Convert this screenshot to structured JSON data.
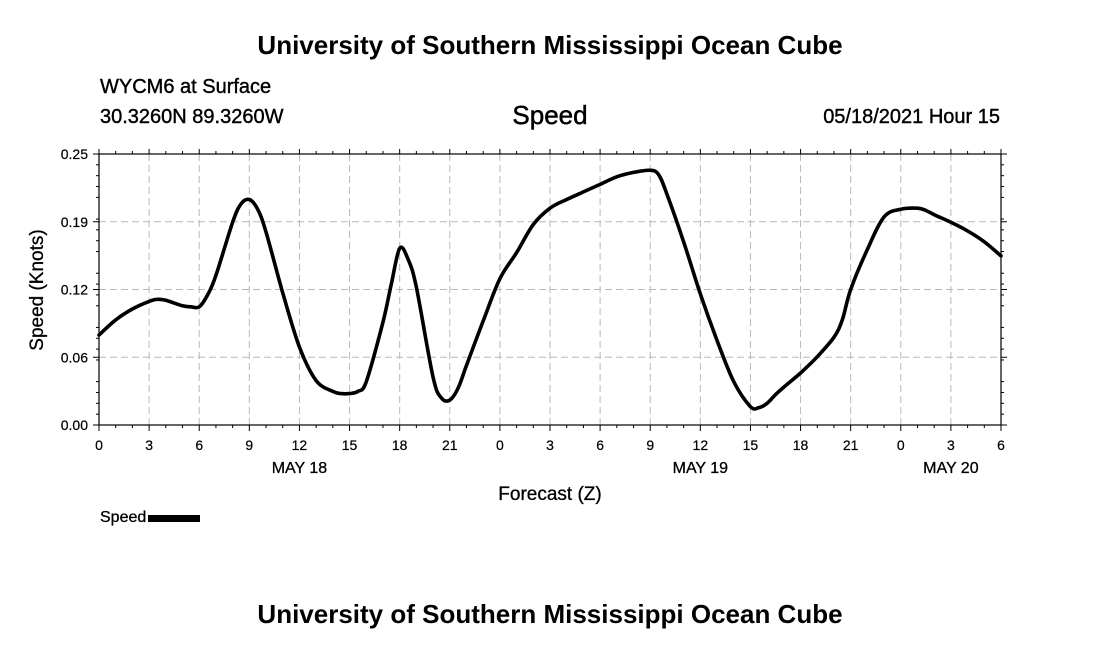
{
  "header": {
    "title": "University of Southern Mississippi Ocean Cube",
    "station": "WYCM6 at Surface",
    "coordinates": "30.3260N  89.3260W",
    "parameter": "Speed",
    "datetime": "05/18/2021 Hour 15"
  },
  "footer": {
    "title": "University of Southern Mississippi Ocean Cube"
  },
  "legend": {
    "label": "Speed"
  },
  "chart_data": {
    "type": "line",
    "title": "Speed",
    "xlabel": "Forecast (Z)",
    "ylabel": "Speed (Knots)",
    "xlim": [
      0,
      54
    ],
    "ylim": [
      0,
      0.25
    ],
    "yticks": [
      "0.00",
      "0.06",
      "0.12",
      "0.19",
      "0.25"
    ],
    "ytick_values": [
      0,
      0.0625,
      0.125,
      0.1875,
      0.25
    ],
    "xticks": [
      "0",
      "3",
      "6",
      "9",
      "12",
      "15",
      "18",
      "21",
      "0",
      "3",
      "6",
      "9",
      "12",
      "15",
      "18",
      "21",
      "0",
      "3",
      "6"
    ],
    "date_labels": [
      {
        "label": "MAY 18",
        "at_hour": 12
      },
      {
        "label": "MAY 19",
        "at_hour": 36
      },
      {
        "label": "MAY 20",
        "at_hour": 51
      }
    ],
    "grid": true,
    "legend_position": "bottom-left",
    "series": [
      {
        "name": "Speed",
        "color": "#000000",
        "x": [
          0,
          1,
          2,
          3,
          3.5,
          4,
          5,
          5.5,
          6,
          6.5,
          7,
          8,
          8.5,
          9,
          9.5,
          10,
          11,
          12,
          13,
          14,
          14.5,
          15,
          15.5,
          16,
          17,
          17.5,
          18,
          18.5,
          19,
          20,
          20.5,
          21,
          21.5,
          22,
          23,
          24,
          25,
          26,
          27,
          28,
          29,
          30,
          31,
          32,
          33,
          33.5,
          34,
          35,
          36,
          37,
          38,
          39,
          39.5,
          40,
          40.5,
          41,
          42,
          43,
          44,
          44.5,
          45,
          46,
          47,
          48,
          49,
          49.5,
          50,
          51,
          52,
          53,
          54
        ],
        "y": [
          0.083,
          0.097,
          0.107,
          0.114,
          0.116,
          0.115,
          0.11,
          0.109,
          0.109,
          0.12,
          0.138,
          0.187,
          0.204,
          0.208,
          0.199,
          0.178,
          0.122,
          0.072,
          0.041,
          0.031,
          0.029,
          0.029,
          0.031,
          0.04,
          0.095,
          0.13,
          0.163,
          0.153,
          0.127,
          0.044,
          0.025,
          0.023,
          0.034,
          0.055,
          0.096,
          0.135,
          0.159,
          0.185,
          0.2,
          0.208,
          0.215,
          0.222,
          0.229,
          0.233,
          0.235,
          0.231,
          0.213,
          0.169,
          0.121,
          0.078,
          0.04,
          0.017,
          0.016,
          0.02,
          0.028,
          0.035,
          0.048,
          0.063,
          0.081,
          0.097,
          0.125,
          0.162,
          0.192,
          0.199,
          0.2,
          0.198,
          0.194,
          0.187,
          0.179,
          0.169,
          0.156
        ]
      }
    ]
  }
}
